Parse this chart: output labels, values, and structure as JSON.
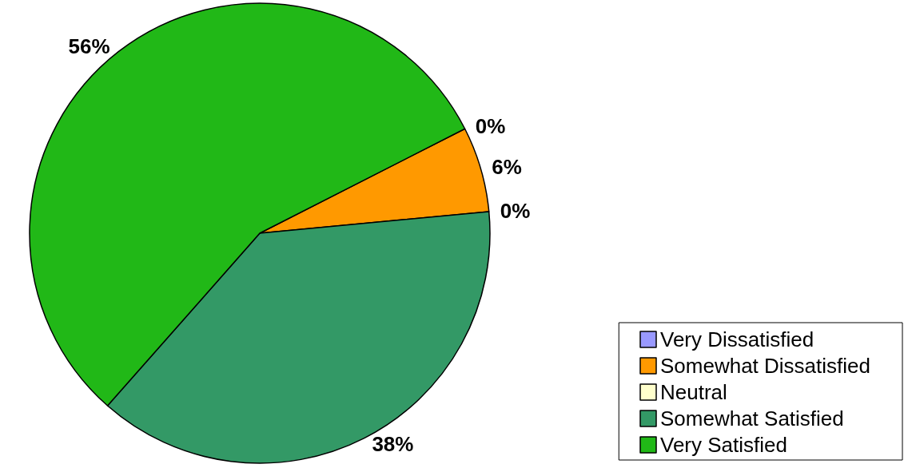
{
  "chart_data": {
    "type": "pie",
    "categories": [
      "Very Dissatisfied",
      "Somewhat Dissatisfied",
      "Neutral",
      "Somewhat Satisfied",
      "Very Satisfied"
    ],
    "values": [
      0,
      6,
      0,
      38,
      56
    ],
    "colors": [
      "#9999ff",
      "#ff9900",
      "#ffffcc",
      "#339966",
      "#21b817"
    ],
    "value_labels": [
      "0%",
      "6%",
      "0%",
      "38%",
      "56%"
    ],
    "legend": "bottom right"
  }
}
